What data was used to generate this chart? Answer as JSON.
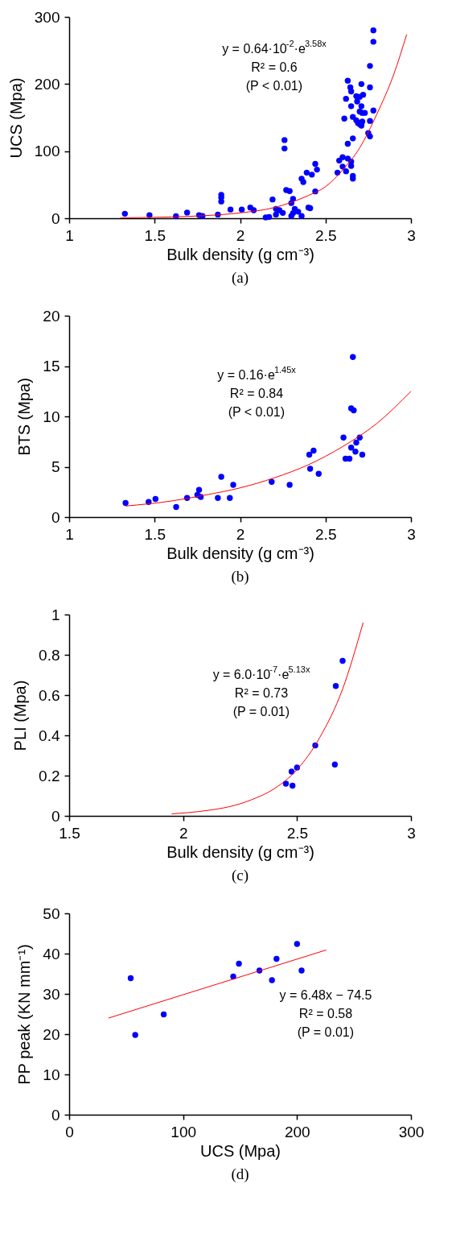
{
  "chart_data": [
    {
      "type": "scatter",
      "xlabel": "Bulk density (g cm⁻³)",
      "ylabel": "UCS (Mpa)",
      "xlim": [
        1,
        3
      ],
      "ylim": [
        0,
        300
      ],
      "xticks": [
        1,
        1.5,
        2,
        2.5,
        3
      ],
      "yticks": [
        0,
        100,
        200,
        300
      ],
      "grid": false,
      "annotations": [
        "y = 0.64·10$^{-2}$·e$^{3.58x}$",
        "R² = 0.6",
        "(P < 0.01)",
        "(a)"
      ],
      "series": [
        {
          "marker": "circle",
          "color": "#0000ff",
          "x": [
            1.326,
            1.47,
            1.625,
            1.69,
            1.76,
            1.78,
            1.87,
            1.89,
            1.89,
            1.89,
            1.944,
            2.01,
            2.06,
            2.08,
            2.15,
            2.17,
            2.19,
            2.21,
            2.21,
            2.23,
            2.25,
            2.26,
            2.26,
            2.27,
            2.29,
            2.31,
            2.3,
            2.3,
            2.31,
            2.32,
            2.34,
            2.36,
            2.36,
            2.37,
            2.39,
            2.42,
            2.44,
            2.45,
            2.44,
            2.4,
            2.41,
            2.57,
            2.58,
            2.6,
            2.62,
            2.6,
            2.63,
            2.65,
            2.65,
            2.66,
            2.66,
            2.63,
            2.66,
            2.61,
            2.62,
            2.63,
            2.645,
            2.65,
            2.65,
            2.66,
            2.68,
            2.685,
            2.7,
            2.71,
            2.71,
            2.72,
            2.7,
            2.715,
            2.73,
            2.69,
            2.71,
            2.715,
            2.68,
            2.7,
            2.76,
            2.76,
            2.76,
            2.78,
            2.78,
            2.78,
            2.76,
            2.75
          ],
          "values": [
            6.8,
            4.7,
            3,
            8.5,
            4.7,
            3.4,
            5.5,
            31,
            35,
            25,
            13,
            13,
            16,
            12,
            1.3,
            2,
            28,
            5.5,
            14,
            12,
            8,
            116.5,
            104,
            42,
            40.5,
            29,
            22.6,
            3.4,
            7.7,
            14,
            9.8,
            3.4,
            59,
            54,
            68,
            65,
            81,
            72.5,
            40,
            16,
            15,
            68,
            86,
            77,
            70,
            91,
            89,
            84.5,
            78,
            63,
            59,
            111,
            119,
            148.5,
            178,
            205,
            195,
            189,
            167,
            151,
            182,
            174,
            181,
            200,
            167,
            184,
            159,
            157,
            157,
            142,
            138,
            144,
            146,
            140,
            145,
            195,
            227,
            263,
            280,
            160.5,
            122,
            127
          ]
        },
        {
          "type": "line",
          "color": "#ff0000",
          "x": [
            1.3,
            1.6,
            1.8,
            2.0,
            2.2,
            2.4,
            2.5,
            2.6,
            2.7,
            2.8,
            2.9,
            2.975
          ],
          "values": [
            0.7,
            2,
            4,
            8,
            16,
            34,
            47,
            72,
            105,
            155,
            215,
            274
          ]
        }
      ]
    },
    {
      "type": "scatter",
      "xlabel": "Bulk density (g cm⁻³)",
      "ylabel": "BTS (Mpa)",
      "xlim": [
        1,
        3
      ],
      "ylim": [
        0,
        20
      ],
      "xticks": [
        1,
        1.5,
        2,
        2.5,
        3
      ],
      "yticks": [
        0,
        5,
        10,
        15,
        20
      ],
      "grid": false,
      "annotations": [
        "y = 0.16·e$^{1.45x}$",
        "R² = 0.84",
        "(P < 0.01)",
        "(b)"
      ],
      "series": [
        {
          "marker": "circle",
          "color": "#0000ff",
          "x": [
            1.33,
            1.465,
            1.505,
            1.626,
            1.69,
            1.75,
            1.76,
            1.77,
            1.87,
            1.89,
            1.94,
            1.96,
            2.185,
            2.29,
            2.405,
            2.43,
            2.41,
            2.46,
            2.605,
            2.617,
            2.64,
            2.65,
            2.675,
            2.68,
            2.7,
            2.715,
            2.65,
            2.665,
            2.66
          ],
          "values": [
            1.4,
            1.5,
            1.8,
            1.0,
            1.9,
            2.2,
            2.7,
            2.0,
            1.9,
            4.0,
            1.9,
            3.2,
            3.5,
            3.2,
            6.2,
            6.6,
            4.8,
            4.3,
            7.9,
            5.8,
            5.8,
            6.9,
            6.5,
            7.4,
            7.9,
            6.2,
            10.8,
            10.6,
            15.9
          ]
        },
        {
          "type": "line",
          "color": "#ff0000",
          "x": [
            1.33,
            1.6,
            1.8,
            2.0,
            2.2,
            2.4,
            2.6,
            2.8,
            3.0
          ],
          "values": [
            1.1,
            1.6,
            2.2,
            2.9,
            3.9,
            5.2,
            7.0,
            9.3,
            12.5
          ]
        }
      ]
    },
    {
      "type": "scatter",
      "xlabel": "Bulk density (g cm⁻³)",
      "ylabel": "PLI (Mpa)",
      "xlim": [
        1.5,
        3
      ],
      "ylim": [
        0,
        1
      ],
      "xticks": [
        1.5,
        2,
        2.5,
        3
      ],
      "yticks": [
        0,
        0.2,
        0.4,
        0.6,
        0.8,
        1
      ],
      "grid": false,
      "annotations": [
        "y = 6.0·10$^{-7}$·e$^{5.13x}$",
        "R² = 0.73",
        "(P = 0.01)",
        "(c)"
      ],
      "series": [
        {
          "marker": "circle",
          "color": "#0000ff",
          "x": [
            2.451,
            2.48,
            2.476,
            2.5,
            2.58,
            2.666,
            2.67,
            2.7
          ],
          "values": [
            0.16,
            0.15,
            0.22,
            0.24,
            0.35,
            0.255,
            0.645,
            0.77
          ]
        },
        {
          "type": "line",
          "color": "#ff0000",
          "x": [
            1.95,
            2.1,
            2.2,
            2.3,
            2.4,
            2.5,
            2.6,
            2.7,
            2.79
          ],
          "values": [
            0.01,
            0.026,
            0.045,
            0.08,
            0.135,
            0.23,
            0.39,
            0.63,
            0.96
          ]
        }
      ]
    },
    {
      "type": "scatter",
      "xlabel": "UCS (Mpa)",
      "ylabel": "PP peak (KN mm⁻¹)",
      "xlim": [
        0,
        300
      ],
      "ylim": [
        0,
        50
      ],
      "xticks": [
        0,
        100,
        200,
        300
      ],
      "yticks": [
        0,
        10,
        20,
        30,
        40,
        50
      ],
      "grid": false,
      "annotations": [
        "y = 6.48x − 74.5",
        "R² = 0.58",
        "(P = 0.01)",
        "(d)"
      ],
      "series": [
        {
          "marker": "circle",
          "color": "#0000ff",
          "x": [
            54,
            58,
            83,
            144,
            149,
            167,
            178,
            182,
            200,
            204
          ],
          "values": [
            33.9,
            19.8,
            24.9,
            34.3,
            37.5,
            35.8,
            33.4,
            38.7,
            42.4,
            35.8
          ]
        },
        {
          "type": "line",
          "color": "#ff0000",
          "x": [
            34.6,
            225.6
          ],
          "values": [
            24.0,
            40.9
          ]
        }
      ]
    }
  ]
}
